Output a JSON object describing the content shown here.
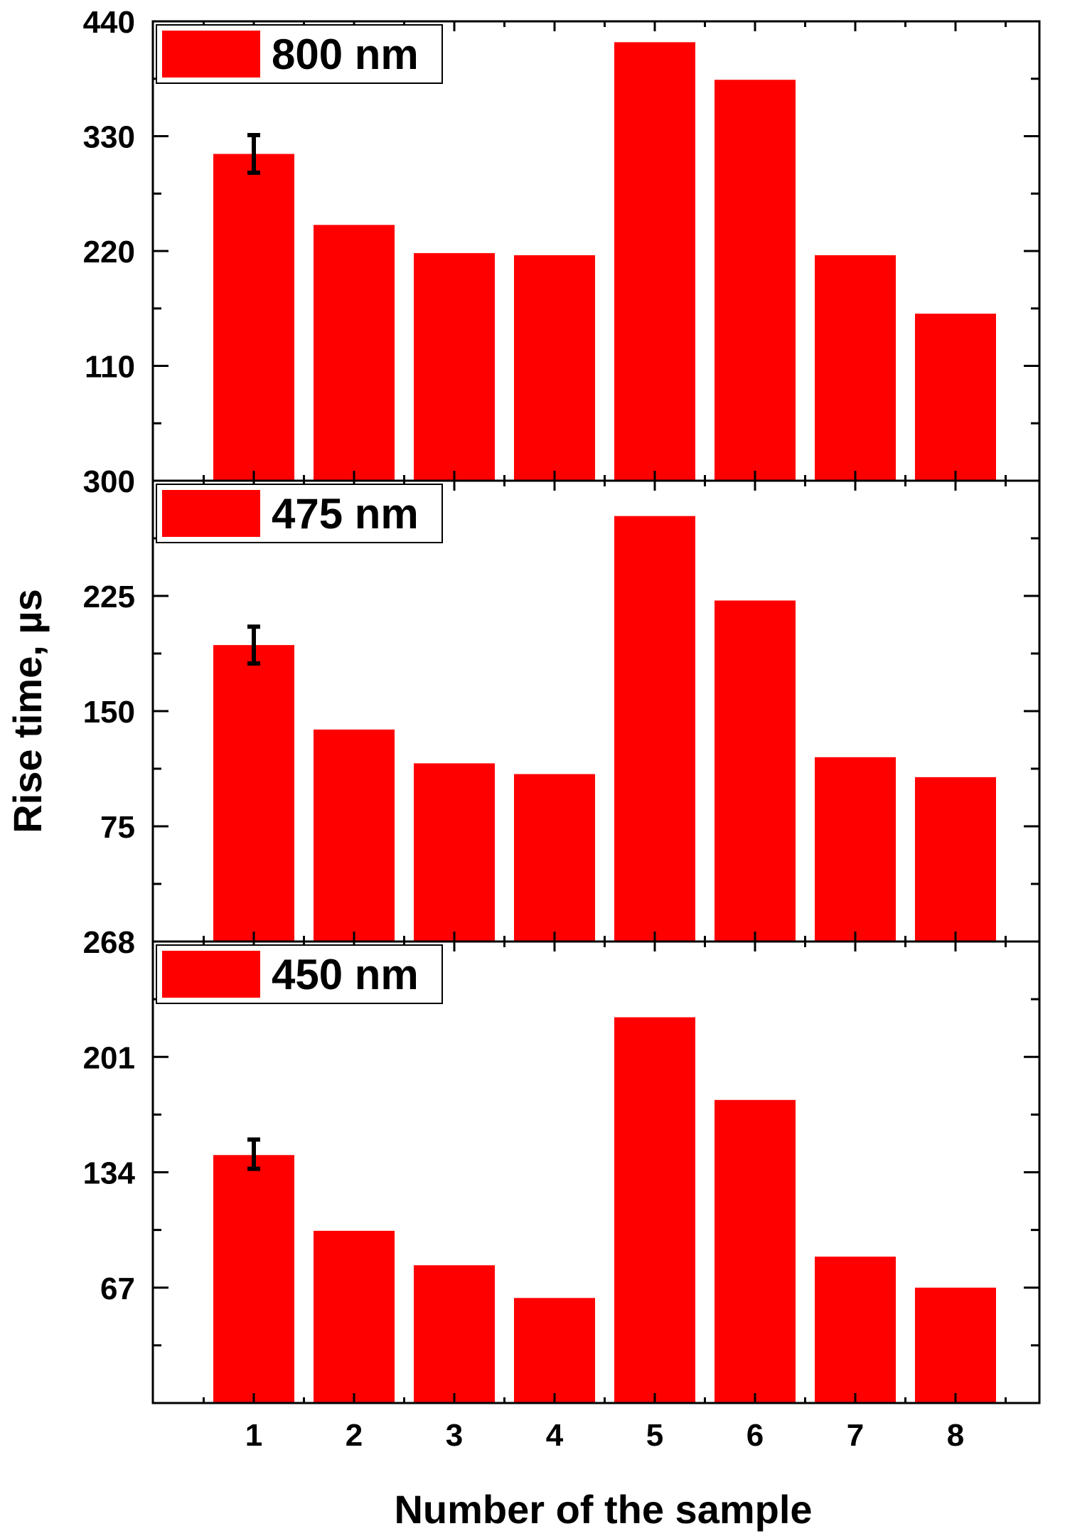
{
  "chart_data": {
    "type": "bar",
    "x_label": "Number of the sample",
    "y_label": "Rise time, µs",
    "categories": [
      "1",
      "2",
      "3",
      "4",
      "5",
      "6",
      "7",
      "8"
    ],
    "bar_color": "#ff0000",
    "panels": [
      {
        "legend": "800 nm",
        "ylim": [
          0,
          440
        ],
        "y_ticks": [
          110,
          220,
          330,
          440
        ],
        "bottom_tick_label": "300",
        "values": [
          313,
          245,
          218,
          216,
          420,
          384,
          216,
          160
        ],
        "error_bar": {
          "category": "1",
          "low": 295,
          "high": 331
        }
      },
      {
        "legend": "475 nm",
        "ylim": [
          0,
          300
        ],
        "y_ticks": [
          75,
          150,
          225
        ],
        "bottom_tick_label": "268",
        "values": [
          193,
          138,
          116,
          109,
          277,
          222,
          120,
          107
        ],
        "error_bar": {
          "category": "1",
          "low": 181,
          "high": 205
        }
      },
      {
        "legend": "450 nm",
        "ylim": [
          0,
          268
        ],
        "y_ticks": [
          67,
          134,
          201
        ],
        "bottom_tick_label": "",
        "values": [
          144,
          100,
          80,
          61,
          224,
          176,
          85,
          67
        ],
        "error_bar": {
          "category": "1",
          "low": 136,
          "high": 153
        }
      }
    ]
  }
}
